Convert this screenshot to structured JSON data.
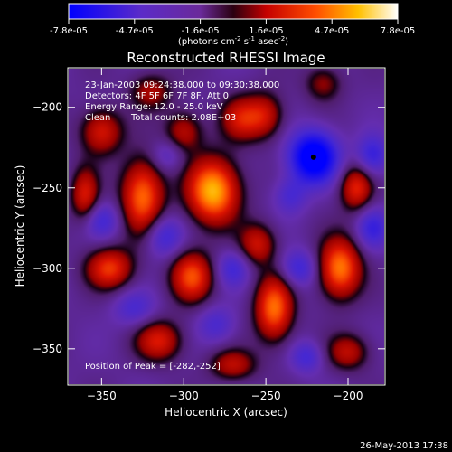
{
  "colorbar": {
    "tick_labels": [
      "-7.8e-05",
      "-4.7e-05",
      "-1.6e-05",
      "1.6e-05",
      "4.7e-05",
      "7.8e-05"
    ],
    "units_prefix": "(photons cm",
    "units_exp1": "-2",
    "units_mid": " s",
    "units_exp2": "-1",
    "units_mid2": " asec",
    "units_exp3": "-2",
    "units_suffix": ")",
    "range": [
      -7.8e-05,
      7.8e-05
    ]
  },
  "chart_data": {
    "type": "heatmap",
    "title": "Reconstructed RHESSI Image",
    "xlabel": "Heliocentric X (arcsec)",
    "ylabel": "Heliocentric Y (arcsec)",
    "x_ticks": [
      -350,
      -300,
      -250,
      -200
    ],
    "y_ticks": [
      -200,
      -250,
      -300,
      -350
    ],
    "xlim": [
      -370,
      -178
    ],
    "ylim": [
      -372,
      -176
    ],
    "colormap": "rhessi-blue-purple-red-yellow-white",
    "annotations": {
      "time_range": "23-Jan-2003 09:24:38.000 to 09:30:38.000",
      "detectors": "Detectors: 4F 5F 6F 7F 8F, Att 0",
      "energy": "Energy Range: 12.0 - 25.0 keV",
      "clean_label": "Clean",
      "counts": "Total counts: 2.08E+03",
      "peak": "Position of Peak = [-282,-252]"
    },
    "peak_position": [
      -282,
      -252
    ],
    "minimum_marker": [
      -221,
      -231
    ],
    "blobs": [
      {
        "x": -282,
        "y": -252,
        "v": 1.0,
        "sx": 11,
        "sy": 14
      },
      {
        "x": -325,
        "y": -255,
        "v": 0.8,
        "sx": 9,
        "sy": 16
      },
      {
        "x": -265,
        "y": -207,
        "v": 0.5,
        "sx": 9,
        "sy": 10
      },
      {
        "x": -300,
        "y": -215,
        "v": 0.45,
        "sx": 8,
        "sy": 9
      },
      {
        "x": -350,
        "y": -215,
        "v": 0.55,
        "sx": 9,
        "sy": 10
      },
      {
        "x": -320,
        "y": -190,
        "v": 0.4,
        "sx": 9,
        "sy": 8
      },
      {
        "x": -360,
        "y": -255,
        "v": 0.55,
        "sx": 6,
        "sy": 12
      },
      {
        "x": -345,
        "y": -300,
        "v": 0.65,
        "sx": 10,
        "sy": 9
      },
      {
        "x": -295,
        "y": -305,
        "v": 0.7,
        "sx": 9,
        "sy": 11
      },
      {
        "x": -245,
        "y": -325,
        "v": 0.8,
        "sx": 8,
        "sy": 14
      },
      {
        "x": -205,
        "y": -300,
        "v": 0.85,
        "sx": 9,
        "sy": 13
      },
      {
        "x": -255,
        "y": -285,
        "v": 0.5,
        "sx": 8,
        "sy": 9
      },
      {
        "x": -250,
        "y": -205,
        "v": 0.45,
        "sx": 8,
        "sy": 10
      },
      {
        "x": -195,
        "y": -250,
        "v": 0.6,
        "sx": 7,
        "sy": 10
      },
      {
        "x": -200,
        "y": -352,
        "v": 0.45,
        "sx": 9,
        "sy": 8
      },
      {
        "x": -315,
        "y": -345,
        "v": 0.55,
        "sx": 10,
        "sy": 9
      },
      {
        "x": -270,
        "y": -360,
        "v": 0.45,
        "sx": 10,
        "sy": 7
      },
      {
        "x": -215,
        "y": -185,
        "v": 0.35,
        "sx": 8,
        "sy": 8
      },
      {
        "x": -221,
        "y": -231,
        "v": -1.0,
        "sx": 10,
        "sy": 11
      },
      {
        "x": -350,
        "y": -270,
        "v": -0.35,
        "sx": 8,
        "sy": 8
      },
      {
        "x": -312,
        "y": -280,
        "v": -0.4,
        "sx": 8,
        "sy": 9
      },
      {
        "x": -270,
        "y": -300,
        "v": -0.35,
        "sx": 7,
        "sy": 8
      },
      {
        "x": -230,
        "y": -300,
        "v": -0.4,
        "sx": 8,
        "sy": 8
      },
      {
        "x": -330,
        "y": -325,
        "v": -0.3,
        "sx": 9,
        "sy": 8
      },
      {
        "x": -280,
        "y": -335,
        "v": -0.3,
        "sx": 8,
        "sy": 8
      },
      {
        "x": -185,
        "y": -275,
        "v": -0.4,
        "sx": 7,
        "sy": 9
      },
      {
        "x": -235,
        "y": -255,
        "v": -0.3,
        "sx": 7,
        "sy": 8
      },
      {
        "x": -185,
        "y": -230,
        "v": -0.45,
        "sx": 7,
        "sy": 9
      },
      {
        "x": -310,
        "y": -230,
        "v": -0.25,
        "sx": 7,
        "sy": 7
      },
      {
        "x": -225,
        "y": -355,
        "v": -0.35,
        "sx": 7,
        "sy": 7
      }
    ]
  },
  "footer": {
    "timestamp": "26-May-2013 17:38"
  }
}
